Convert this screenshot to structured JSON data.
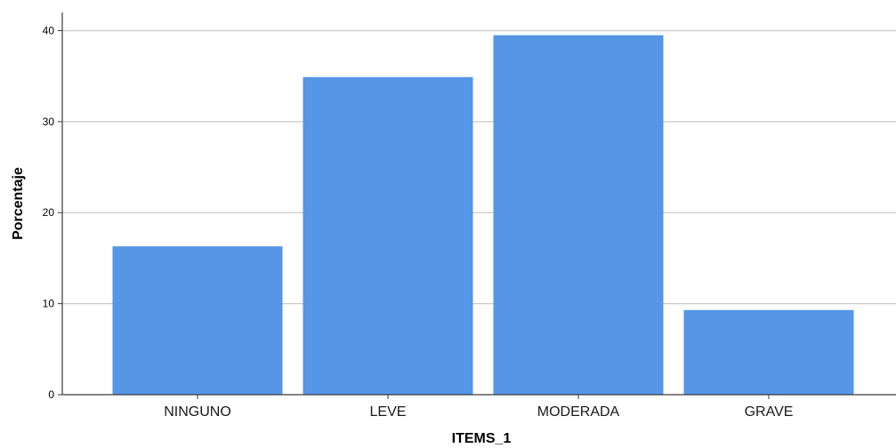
{
  "chart_data": {
    "type": "bar",
    "title": "",
    "xlabel": "ITEMS_1",
    "ylabel": "Porcentaje",
    "categories": [
      "NINGUNO",
      "LEVE",
      "MODERADA",
      "GRAVE"
    ],
    "values": [
      16.3,
      34.9,
      39.5,
      9.3
    ],
    "ylim": [
      0,
      42
    ],
    "yticks": [
      0,
      10,
      20,
      30,
      40
    ],
    "ytick_labels": [
      "0",
      "10",
      "20",
      "30",
      "40"
    ],
    "grid": true,
    "legend": "none"
  },
  "colors": {
    "bar": "#5596e6",
    "grid": "#c8c8c8",
    "axis": "#3a3a3a"
  }
}
